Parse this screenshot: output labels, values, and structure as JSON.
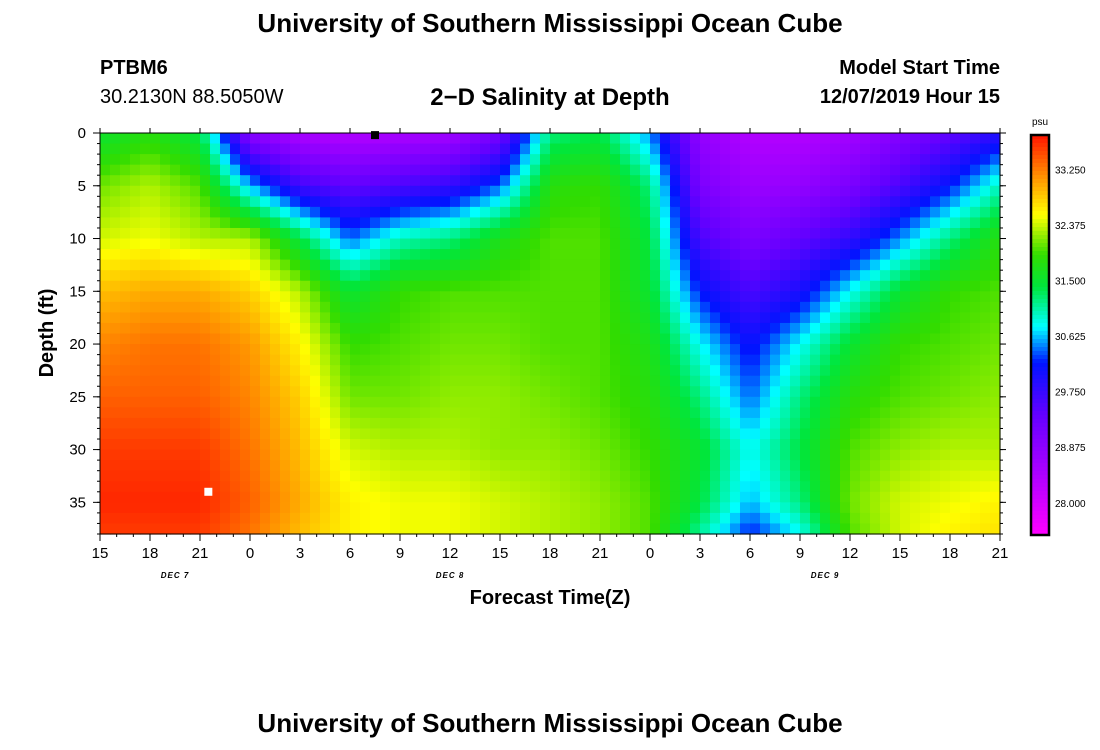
{
  "header": {
    "title_top": "University of Southern Mississippi Ocean Cube",
    "station": "PTBM6",
    "coords": "30.2130N 88.5050W",
    "plot_title": "2−D Salinity at Depth",
    "start_label": "Model Start Time",
    "start_value": "12/07/2019 Hour 15",
    "title_bottom": "University of Southern Mississippi Ocean Cube"
  },
  "chart_data": {
    "type": "heatmap",
    "title": "2−D Salinity at Depth",
    "xlabel": "Forecast Time(Z)",
    "ylabel": "Depth (ft)",
    "x_unit": "hours since model start",
    "xlim": [
      0,
      54
    ],
    "ylim": [
      0,
      38
    ],
    "x_tick_labels": [
      "15",
      "18",
      "21",
      "0",
      "3",
      "6",
      "9",
      "12",
      "15",
      "18",
      "21",
      "0",
      "3",
      "6",
      "9",
      "12",
      "15",
      "18",
      "21"
    ],
    "y_ticks": [
      0,
      5,
      10,
      15,
      20,
      25,
      30,
      35
    ],
    "day_labels": [
      {
        "text": "DEC 7",
        "x": 4.5
      },
      {
        "text": "DEC 8",
        "x": 21
      },
      {
        "text": "DEC 9",
        "x": 43.5
      }
    ],
    "colorbar": {
      "unit": "psu",
      "min": 27.5,
      "max": 33.8,
      "tick_values": [
        33.25,
        32.375,
        31.5,
        30.625,
        29.75,
        28.875,
        28.0
      ],
      "tick_labels": [
        "33.250",
        "32.375",
        "31.500",
        "30.625",
        "29.750",
        "28.875",
        "28.000"
      ]
    },
    "markers": [
      {
        "x": 16.5,
        "y": 0.2,
        "color": "#000000"
      },
      {
        "x": 6.5,
        "y": 34,
        "color": "#ffffff"
      }
    ],
    "field_hours": [
      0,
      3,
      6,
      9,
      12,
      15,
      18,
      21,
      24,
      27,
      30,
      33,
      36,
      39,
      42,
      45,
      48,
      51,
      54
    ],
    "field_depths": [
      0,
      5,
      10,
      15,
      20,
      25,
      30,
      35,
      38
    ],
    "salinity_psu": [
      [
        31.5,
        31.8,
        31.4,
        28.9,
        28.5,
        28.4,
        28.5,
        28.6,
        29.2,
        31.2,
        31.4,
        30.5,
        28.8,
        28.4,
        28.4,
        28.6,
        29.0,
        29.4,
        29.9
      ],
      [
        32.1,
        32.3,
        32.0,
        30.6,
        29.7,
        29.4,
        29.6,
        29.8,
        30.4,
        31.8,
        31.9,
        31.2,
        29.1,
        28.7,
        28.8,
        29.1,
        29.6,
        30.2,
        31.0
      ],
      [
        32.4,
        32.5,
        32.3,
        32.3,
        31.4,
        30.4,
        31.0,
        31.2,
        31.7,
        32.0,
        32.0,
        31.4,
        29.6,
        29.1,
        29.4,
        29.8,
        30.5,
        31.2,
        31.8
      ],
      [
        32.9,
        33.0,
        33.0,
        32.8,
        32.3,
        31.5,
        31.9,
        32.0,
        32.0,
        32.0,
        32.0,
        31.5,
        30.2,
        29.6,
        30.0,
        30.8,
        31.5,
        31.9,
        32.0
      ],
      [
        33.2,
        33.3,
        33.3,
        33.1,
        32.6,
        31.9,
        32.0,
        32.1,
        32.1,
        32.0,
        32.0,
        31.7,
        30.8,
        30.1,
        30.8,
        31.5,
        31.9,
        32.0,
        32.1
      ],
      [
        33.4,
        33.4,
        33.4,
        33.2,
        32.8,
        32.1,
        32.1,
        32.2,
        32.2,
        32.1,
        32.0,
        31.8,
        31.2,
        30.4,
        31.2,
        31.8,
        32.0,
        32.1,
        32.2
      ],
      [
        33.6,
        33.6,
        33.6,
        33.3,
        32.9,
        32.4,
        32.3,
        32.3,
        32.2,
        32.2,
        32.1,
        31.9,
        31.5,
        30.8,
        31.4,
        32.0,
        32.2,
        32.3,
        32.3
      ],
      [
        33.7,
        33.7,
        33.7,
        33.4,
        33.0,
        32.6,
        32.5,
        32.5,
        32.4,
        32.3,
        32.2,
        32.0,
        31.4,
        30.6,
        31.2,
        32.1,
        32.4,
        32.5,
        32.6
      ],
      [
        33.6,
        33.6,
        33.6,
        33.3,
        32.9,
        32.6,
        32.5,
        32.5,
        32.4,
        32.3,
        32.2,
        32.0,
        31.1,
        30.2,
        30.8,
        32.0,
        32.4,
        32.6,
        32.7
      ]
    ]
  }
}
